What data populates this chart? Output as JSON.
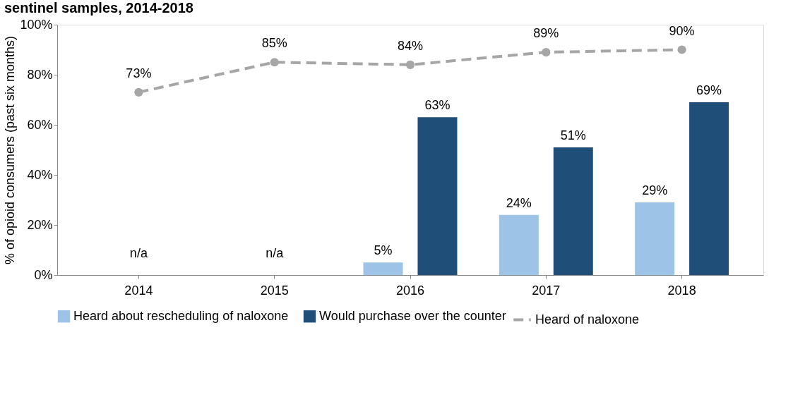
{
  "chart_data": {
    "type": "bar",
    "title": "sentinel samples, 2014-2018",
    "ylabel": "% of opioid consumers (past six months)",
    "categories": [
      "2014",
      "2015",
      "2016",
      "2017",
      "2018"
    ],
    "series": [
      {
        "name": "Heard about rescheduling of naloxone",
        "color": "#9dc3e6",
        "values": [
          null,
          null,
          5,
          24,
          29
        ],
        "value_labels": [
          null,
          null,
          "5%",
          "24%",
          "29%"
        ]
      },
      {
        "name": "Would purchase over the counter",
        "color": "#1f4e79",
        "values": [
          null,
          null,
          63,
          51,
          69
        ],
        "value_labels": [
          null,
          null,
          "63%",
          "51%",
          "69%"
        ]
      },
      {
        "name": "Heard of naloxone",
        "type": "line",
        "color": "#a6a6a6",
        "values": [
          73,
          85,
          84,
          89,
          90
        ],
        "value_labels": [
          "73%",
          "85%",
          "84%",
          "89%",
          "90%"
        ],
        "marker": "circle",
        "line_style": "dashed"
      }
    ],
    "annotations": [
      "n/a",
      "n/a"
    ],
    "ylim": [
      0,
      100
    ],
    "yticks": [
      {
        "value": 0,
        "label": "0%"
      },
      {
        "value": 20,
        "label": "20%"
      },
      {
        "value": 40,
        "label": "40%"
      },
      {
        "value": 60,
        "label": "60%"
      },
      {
        "value": 80,
        "label": "80%"
      },
      {
        "value": 100,
        "label": "100%"
      }
    ],
    "grid": false,
    "legend": "bottom"
  }
}
